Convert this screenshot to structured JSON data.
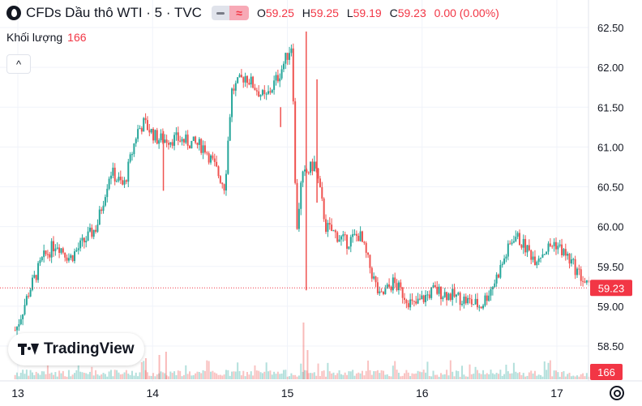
{
  "header": {
    "symbol_title": "CFDs Dầu thô WTI · 5 · TVC",
    "ohlc": {
      "o_label": "O",
      "o_value": "59.25",
      "h_label": "H",
      "h_value": "59.25",
      "l_label": "L",
      "l_value": "59.19",
      "c_label": "C",
      "c_value": "59.23",
      "change": "0.00 (0.00%)"
    },
    "volume_label": "Khối lượng",
    "volume_value": "166",
    "branding": "TradingView"
  },
  "colors": {
    "up": "#26a69a",
    "down": "#ef5350",
    "price_label_bg": "#f23645",
    "grid": "#f0f3fa",
    "text": "#131722"
  },
  "chart_data": {
    "type": "candlestick",
    "title": "CFDs Dầu thô WTI · 5 · TVC",
    "y_ticks": [
      "62.50",
      "62.00",
      "61.50",
      "61.00",
      "60.50",
      "60.00",
      "59.50",
      "59.00",
      "58.50"
    ],
    "ylim": [
      58.2,
      62.55
    ],
    "x_ticks": [
      "13",
      "14",
      "15",
      "16",
      "17"
    ],
    "current_price": "59.23",
    "current_volume": "166",
    "grid": true,
    "candle_interval": "5m",
    "close_path": [
      {
        "day": 13.0,
        "close": 58.7
      },
      {
        "day": 13.1,
        "close": 59.2
      },
      {
        "day": 13.2,
        "close": 59.6
      },
      {
        "day": 13.3,
        "close": 59.8
      },
      {
        "day": 13.4,
        "close": 59.6
      },
      {
        "day": 13.5,
        "close": 59.8
      },
      {
        "day": 13.6,
        "close": 60.0
      },
      {
        "day": 13.7,
        "close": 60.7
      },
      {
        "day": 13.8,
        "close": 60.5
      },
      {
        "day": 13.9,
        "close": 61.2
      },
      {
        "day": 13.95,
        "close": 61.3
      },
      {
        "day": 14.05,
        "close": 61.1
      },
      {
        "day": 14.2,
        "close": 61.1
      },
      {
        "day": 14.4,
        "close": 61.0
      },
      {
        "day": 14.55,
        "close": 60.5
      },
      {
        "day": 14.6,
        "close": 61.7
      },
      {
        "day": 14.7,
        "close": 61.9
      },
      {
        "day": 14.85,
        "close": 61.6
      },
      {
        "day": 14.95,
        "close": 61.9
      },
      {
        "day": 15.05,
        "close": 62.3
      },
      {
        "day": 15.08,
        "close": 59.9
      },
      {
        "day": 15.12,
        "close": 60.6
      },
      {
        "day": 15.22,
        "close": 60.8
      },
      {
        "day": 15.3,
        "close": 60.0
      },
      {
        "day": 15.45,
        "close": 59.8
      },
      {
        "day": 15.55,
        "close": 59.9
      },
      {
        "day": 15.7,
        "close": 59.1
      },
      {
        "day": 15.8,
        "close": 59.3
      },
      {
        "day": 15.95,
        "close": 59.0
      },
      {
        "day": 16.1,
        "close": 59.2
      },
      {
        "day": 16.3,
        "close": 59.1
      },
      {
        "day": 16.45,
        "close": 59.0
      },
      {
        "day": 16.55,
        "close": 59.3
      },
      {
        "day": 16.7,
        "close": 59.9
      },
      {
        "day": 16.85,
        "close": 59.6
      },
      {
        "day": 17.0,
        "close": 59.8
      },
      {
        "day": 17.1,
        "close": 59.6
      },
      {
        "day": 17.25,
        "close": 59.23
      }
    ],
    "spikes": [
      {
        "day": 15.14,
        "high": 62.45,
        "low": 59.2
      },
      {
        "day": 15.22,
        "high": 61.85,
        "low": 60.3
      },
      {
        "day": 14.08,
        "high": 61.2,
        "low": 60.45
      },
      {
        "day": 14.95,
        "high": 61.5,
        "low": 61.25
      }
    ]
  }
}
